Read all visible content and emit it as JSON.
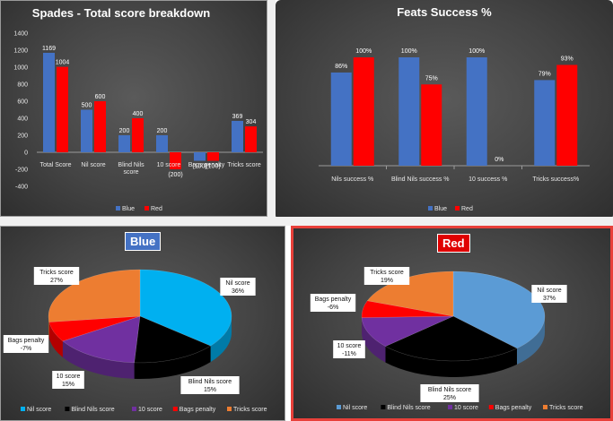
{
  "colors": {
    "blue": "#4472c4",
    "red": "#ff0000",
    "nil": "#00b0f0",
    "blind_nils": "#000000",
    "ten": "#7030a0",
    "bags": "#ff0000",
    "tricks": "#ed7d31",
    "nil_red": "#5b9bd5"
  },
  "chart_data": [
    {
      "type": "bar",
      "title": "Spades - Total score breakdown",
      "categories": [
        "Total Score",
        "Nil score",
        "Blind Nils score",
        "10 score",
        "Bags penalty",
        "Tricks score"
      ],
      "series": [
        {
          "name": "Blue",
          "values": [
            1169,
            500,
            200,
            200,
            -100,
            369
          ],
          "labels": [
            "1169",
            "500",
            "200",
            "200",
            "(100)",
            "369"
          ]
        },
        {
          "name": "Red",
          "values": [
            1004,
            600,
            400,
            -200,
            -100,
            304
          ],
          "labels": [
            "1004",
            "600",
            "400",
            "(200)",
            "(100)",
            "304"
          ]
        }
      ],
      "yticks": [
        "1400",
        "1200",
        "1000",
        "800",
        "600",
        "400",
        "200",
        "0",
        "-200",
        "-400"
      ],
      "ylim": [
        -400,
        1400
      ],
      "legend": "bottom"
    },
    {
      "type": "bar",
      "title": "Feats Success %",
      "categories": [
        "Nils success  %",
        "Blind Nils success  %",
        "10 success  %",
        "Tricks success%"
      ],
      "series": [
        {
          "name": "Blue",
          "values": [
            86,
            100,
            100,
            79
          ],
          "labels": [
            "86%",
            "100%",
            "100%",
            "79%"
          ]
        },
        {
          "name": "Red",
          "values": [
            100,
            75,
            0,
            93
          ],
          "labels": [
            "100%",
            "75%",
            "0%",
            "93%"
          ]
        }
      ],
      "ylim": [
        0,
        100
      ],
      "legend": "bottom"
    },
    {
      "type": "pie",
      "title": "Blue",
      "labels": [
        "Nil score",
        "Blind Nils score",
        "10 score",
        "Bags penalty",
        "Tricks score"
      ],
      "values": [
        36,
        15,
        15,
        -7,
        27
      ],
      "value_labels": [
        "36%",
        "15%",
        "15%",
        "-7%",
        "27%"
      ],
      "legend": "bottom"
    },
    {
      "type": "pie",
      "title": "Red",
      "labels": [
        "Nil score",
        "Blind Nils score",
        "10 score",
        "Bags penalty",
        "Tricks score"
      ],
      "values": [
        37,
        25,
        -11,
        -6,
        19
      ],
      "value_labels": [
        "37%",
        "25%",
        "-11%",
        "-6%",
        "19%"
      ],
      "legend": "bottom"
    }
  ]
}
